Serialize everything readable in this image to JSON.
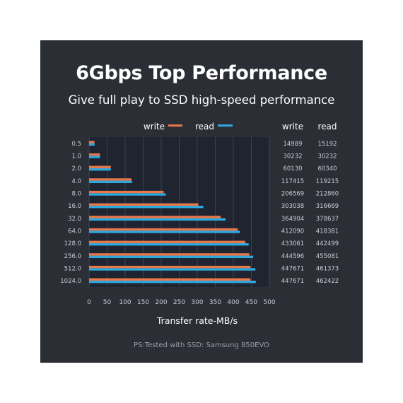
{
  "title": "6Gbps Top Performance",
  "subtitle": "Give full play to SSD high-speed performance",
  "note": "PS:Tested with SSD: Samsung 850EVO",
  "colors": {
    "panel": "#2b2e35",
    "plot_bg": "#1f2430",
    "write": "#e8784a",
    "read": "#2ea8dc",
    "grid": "#3d4a66"
  },
  "chart_data": {
    "type": "bar",
    "orientation": "horizontal",
    "xlabel": "Transfer rate-MB/s",
    "xlim": [
      0,
      500
    ],
    "xticks": [
      0,
      50,
      100,
      150,
      200,
      250,
      300,
      350,
      400,
      450,
      500
    ],
    "categories": [
      "0.5",
      "1.0",
      "2.0",
      "4.0",
      "8.0",
      "16.0",
      "32.0",
      "64.0",
      "128.0",
      "256.0",
      "512.0",
      "1024.0"
    ],
    "legend_position": "top",
    "series": [
      {
        "name": "write",
        "values": [
          14.989,
          30.232,
          60.13,
          117.415,
          206.569,
          303.038,
          364.904,
          412.09,
          433.061,
          444.596,
          447.671,
          447.671
        ]
      },
      {
        "name": "read",
        "values": [
          15.192,
          30.232,
          60.34,
          119.215,
          212.86,
          316.669,
          378.637,
          418.381,
          442.499,
          455.081,
          461.373,
          462.422
        ]
      }
    ],
    "table": {
      "headers": [
        "write",
        "read"
      ],
      "rows": [
        [
          "14989",
          "15192"
        ],
        [
          "30232",
          "30232"
        ],
        [
          "60130",
          "60340"
        ],
        [
          "117415",
          "119215"
        ],
        [
          "206569",
          "212860"
        ],
        [
          "303038",
          "316669"
        ],
        [
          "364904",
          "378637"
        ],
        [
          "412090",
          "418381"
        ],
        [
          "433061",
          "442499"
        ],
        [
          "444596",
          "455081"
        ],
        [
          "447671",
          "461373"
        ],
        [
          "447671",
          "462422"
        ]
      ]
    }
  }
}
